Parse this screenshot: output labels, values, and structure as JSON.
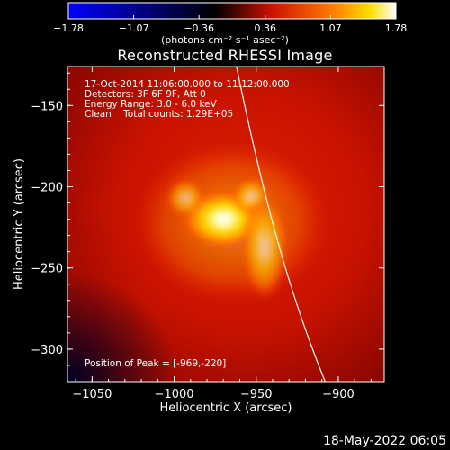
{
  "colorbar": {
    "ticks": [
      "-1.78",
      "-1.07",
      "-0.36",
      "0.36",
      "1.07",
      "1.78"
    ],
    "tick_values": [
      -1.78,
      -1.07,
      -0.36,
      0.36,
      1.07,
      1.78
    ],
    "range": [
      -1.78,
      1.78
    ],
    "units": "(photons cm⁻² s⁻¹ asec⁻²)",
    "colors": [
      "#0000ff",
      "#000000",
      "#ff0000",
      "#ffffff"
    ]
  },
  "chart_data": {
    "type": "heatmap",
    "title": "Reconstructed RHESSI Image",
    "xlabel": "Heliocentric X (arcsec)",
    "ylabel": "Heliocentric Y (arcsec)",
    "xlim": [
      -1065,
      -872
    ],
    "ylim": [
      -320,
      -126
    ],
    "x_ticks": [
      -1050,
      -1000,
      -950,
      -900
    ],
    "y_ticks": [
      -150,
      -200,
      -250,
      -300
    ],
    "x_tick_labels": [
      "−1050",
      "−1000",
      "−950",
      "−900"
    ],
    "y_tick_labels": [
      "−150",
      "−200",
      "−250",
      "−300"
    ],
    "peak": [
      -969,
      -220
    ],
    "sources": [
      {
        "x": -970,
        "y": -220,
        "sigma_x": 11,
        "sigma_y": 8,
        "amplitude": 1.0
      },
      {
        "x": -993,
        "y": -207,
        "sigma_x": 5,
        "sigma_y": 5,
        "amplitude": 0.55
      },
      {
        "x": -953,
        "y": -206,
        "sigma_x": 5,
        "sigma_y": 5,
        "amplitude": 0.6
      },
      {
        "x": -945,
        "y": -237,
        "sigma_x": 6,
        "sigma_y": 14,
        "amplitude": 0.6
      }
    ],
    "limb": [
      [
        -962,
        -126
      ],
      [
        -947,
        -200
      ],
      [
        -932,
        -260
      ],
      [
        -908,
        -320
      ]
    ],
    "limb_color": "#ffffff",
    "annotations": [
      "17-Oct-2014 11:06:00.000 to 11:12:00.000",
      "Detectors: 3F 6F 9F, Att 0",
      "Energy Range: 3.0 - 6.0 keV",
      "Clean    Total counts: 1.29E+05"
    ],
    "peak_label": "Position of Peak = [-969,-220]"
  },
  "timestamp": "18-May-2022 06:05"
}
